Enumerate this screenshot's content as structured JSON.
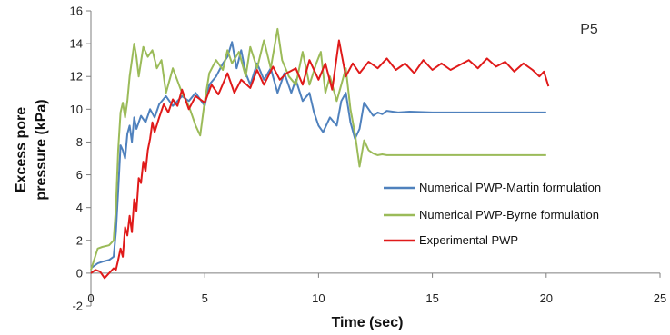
{
  "chart_data": {
    "type": "line",
    "panel_label": "P5",
    "xlabel": "Time (sec)",
    "ylabel_line1": "Excess pore",
    "ylabel_line2": "pressure (kPa)",
    "xlim": [
      0,
      25
    ],
    "ylim": [
      -2,
      16
    ],
    "xticks": [
      0,
      5,
      10,
      15,
      20,
      25
    ],
    "yticks": [
      -2,
      0,
      2,
      4,
      6,
      8,
      10,
      12,
      14,
      16
    ],
    "grid": false,
    "legend_position": "right",
    "series": [
      {
        "name": "Numerical PWP-Martin formulation",
        "color": "#4f81bd",
        "x": [
          0,
          0.3,
          0.5,
          0.8,
          1.0,
          1.1,
          1.2,
          1.3,
          1.4,
          1.5,
          1.6,
          1.7,
          1.8,
          1.9,
          2.0,
          2.2,
          2.4,
          2.6,
          2.8,
          3.0,
          3.3,
          3.6,
          4.0,
          4.3,
          4.6,
          5.0,
          5.2,
          5.5,
          5.8,
          6.0,
          6.2,
          6.4,
          6.6,
          6.8,
          7.0,
          7.3,
          7.6,
          7.9,
          8.2,
          8.5,
          8.8,
          9.0,
          9.3,
          9.6,
          9.8,
          10.0,
          10.2,
          10.5,
          10.8,
          11.0,
          11.2,
          11.4,
          11.6,
          11.8,
          12.0,
          12.2,
          12.4,
          12.6,
          12.8,
          13.0,
          13.5,
          14.0,
          15.0,
          16.0,
          17.0,
          18.0,
          19.0,
          20.0
        ],
        "y": [
          0.3,
          0.6,
          0.7,
          0.8,
          1.0,
          2.5,
          5.0,
          7.8,
          7.5,
          7.0,
          8.5,
          9.0,
          8.0,
          9.5,
          8.8,
          9.6,
          9.2,
          10.0,
          9.5,
          10.3,
          10.8,
          10.2,
          10.8,
          10.5,
          11.0,
          10.2,
          11.5,
          12.0,
          12.8,
          13.2,
          14.1,
          12.5,
          13.6,
          12.2,
          11.5,
          12.8,
          11.8,
          12.5,
          11.0,
          12.2,
          11.0,
          11.8,
          10.5,
          11.0,
          9.8,
          9.0,
          8.6,
          9.5,
          9.0,
          10.5,
          11.0,
          9.2,
          8.2,
          8.8,
          10.4,
          10.0,
          9.6,
          9.8,
          9.7,
          9.9,
          9.8,
          9.85,
          9.8,
          9.8,
          9.8,
          9.8,
          9.8,
          9.8
        ]
      },
      {
        "name": "Numerical PWP-Byrne formulation",
        "color": "#9bbb59",
        "x": [
          0,
          0.3,
          0.5,
          0.8,
          1.0,
          1.1,
          1.2,
          1.3,
          1.4,
          1.5,
          1.6,
          1.7,
          1.8,
          1.9,
          2.0,
          2.1,
          2.3,
          2.5,
          2.7,
          2.9,
          3.1,
          3.3,
          3.6,
          4.0,
          4.3,
          4.6,
          4.8,
          5.0,
          5.2,
          5.5,
          5.8,
          6.0,
          6.2,
          6.5,
          6.8,
          7.0,
          7.3,
          7.6,
          7.9,
          8.2,
          8.4,
          8.7,
          9.0,
          9.3,
          9.6,
          9.9,
          10.1,
          10.3,
          10.5,
          10.8,
          11.0,
          11.2,
          11.4,
          11.6,
          11.8,
          12.0,
          12.2,
          12.4,
          12.6,
          12.8,
          13.0,
          14.0,
          15.0,
          16.0,
          17.0,
          18.0,
          19.0,
          20.0
        ],
        "y": [
          0.2,
          1.5,
          1.6,
          1.7,
          2.0,
          4.0,
          7.5,
          9.8,
          10.4,
          9.5,
          10.5,
          12.0,
          13.0,
          14.0,
          13.2,
          12.0,
          13.8,
          13.2,
          13.6,
          12.5,
          13.0,
          11.0,
          12.5,
          11.0,
          10.2,
          9.0,
          8.4,
          10.5,
          12.2,
          13.0,
          12.4,
          13.6,
          12.8,
          13.5,
          12.0,
          13.8,
          12.5,
          14.2,
          12.5,
          14.9,
          13.0,
          12.0,
          11.5,
          13.5,
          11.5,
          12.8,
          13.5,
          11.0,
          12.0,
          10.5,
          11.5,
          12.5,
          10.0,
          8.5,
          6.5,
          8.1,
          7.5,
          7.3,
          7.2,
          7.25,
          7.2,
          7.2,
          7.2,
          7.2,
          7.2,
          7.2,
          7.2,
          7.2
        ]
      },
      {
        "name": "Experimental PWP",
        "color": "#e01a1a",
        "x": [
          0,
          0.2,
          0.4,
          0.6,
          0.8,
          1.0,
          1.1,
          1.2,
          1.3,
          1.4,
          1.5,
          1.6,
          1.7,
          1.8,
          1.9,
          2.0,
          2.1,
          2.2,
          2.3,
          2.4,
          2.5,
          2.6,
          2.7,
          2.8,
          3.0,
          3.2,
          3.4,
          3.6,
          3.8,
          4.0,
          4.3,
          4.6,
          5.0,
          5.3,
          5.6,
          6.0,
          6.3,
          6.6,
          7.0,
          7.3,
          7.6,
          8.0,
          8.3,
          8.6,
          9.0,
          9.3,
          9.6,
          10.0,
          10.3,
          10.6,
          10.9,
          11.2,
          11.5,
          11.8,
          12.2,
          12.6,
          13.0,
          13.4,
          13.8,
          14.2,
          14.6,
          15.0,
          15.4,
          15.8,
          16.2,
          16.6,
          17.0,
          17.4,
          17.8,
          18.2,
          18.6,
          19.0,
          19.4,
          19.7,
          19.9,
          20.1
        ],
        "y": [
          0.0,
          0.2,
          0.1,
          -0.3,
          0.0,
          0.3,
          0.2,
          0.8,
          1.5,
          1.0,
          2.8,
          2.3,
          3.5,
          2.5,
          4.5,
          3.8,
          5.8,
          5.5,
          6.8,
          6.2,
          7.5,
          8.2,
          9.2,
          8.6,
          9.5,
          10.3,
          9.8,
          10.6,
          10.2,
          11.2,
          10.0,
          10.8,
          10.4,
          11.5,
          10.9,
          12.2,
          11.0,
          11.8,
          11.3,
          12.4,
          11.5,
          12.6,
          11.8,
          12.2,
          12.5,
          11.5,
          13.0,
          11.8,
          12.8,
          11.2,
          14.2,
          12.0,
          12.8,
          12.2,
          12.9,
          12.5,
          13.1,
          12.4,
          12.8,
          12.2,
          13.0,
          12.4,
          12.8,
          12.4,
          12.7,
          13.0,
          12.5,
          13.1,
          12.6,
          12.9,
          12.3,
          12.8,
          12.4,
          12.0,
          12.3,
          11.4
        ]
      }
    ]
  }
}
